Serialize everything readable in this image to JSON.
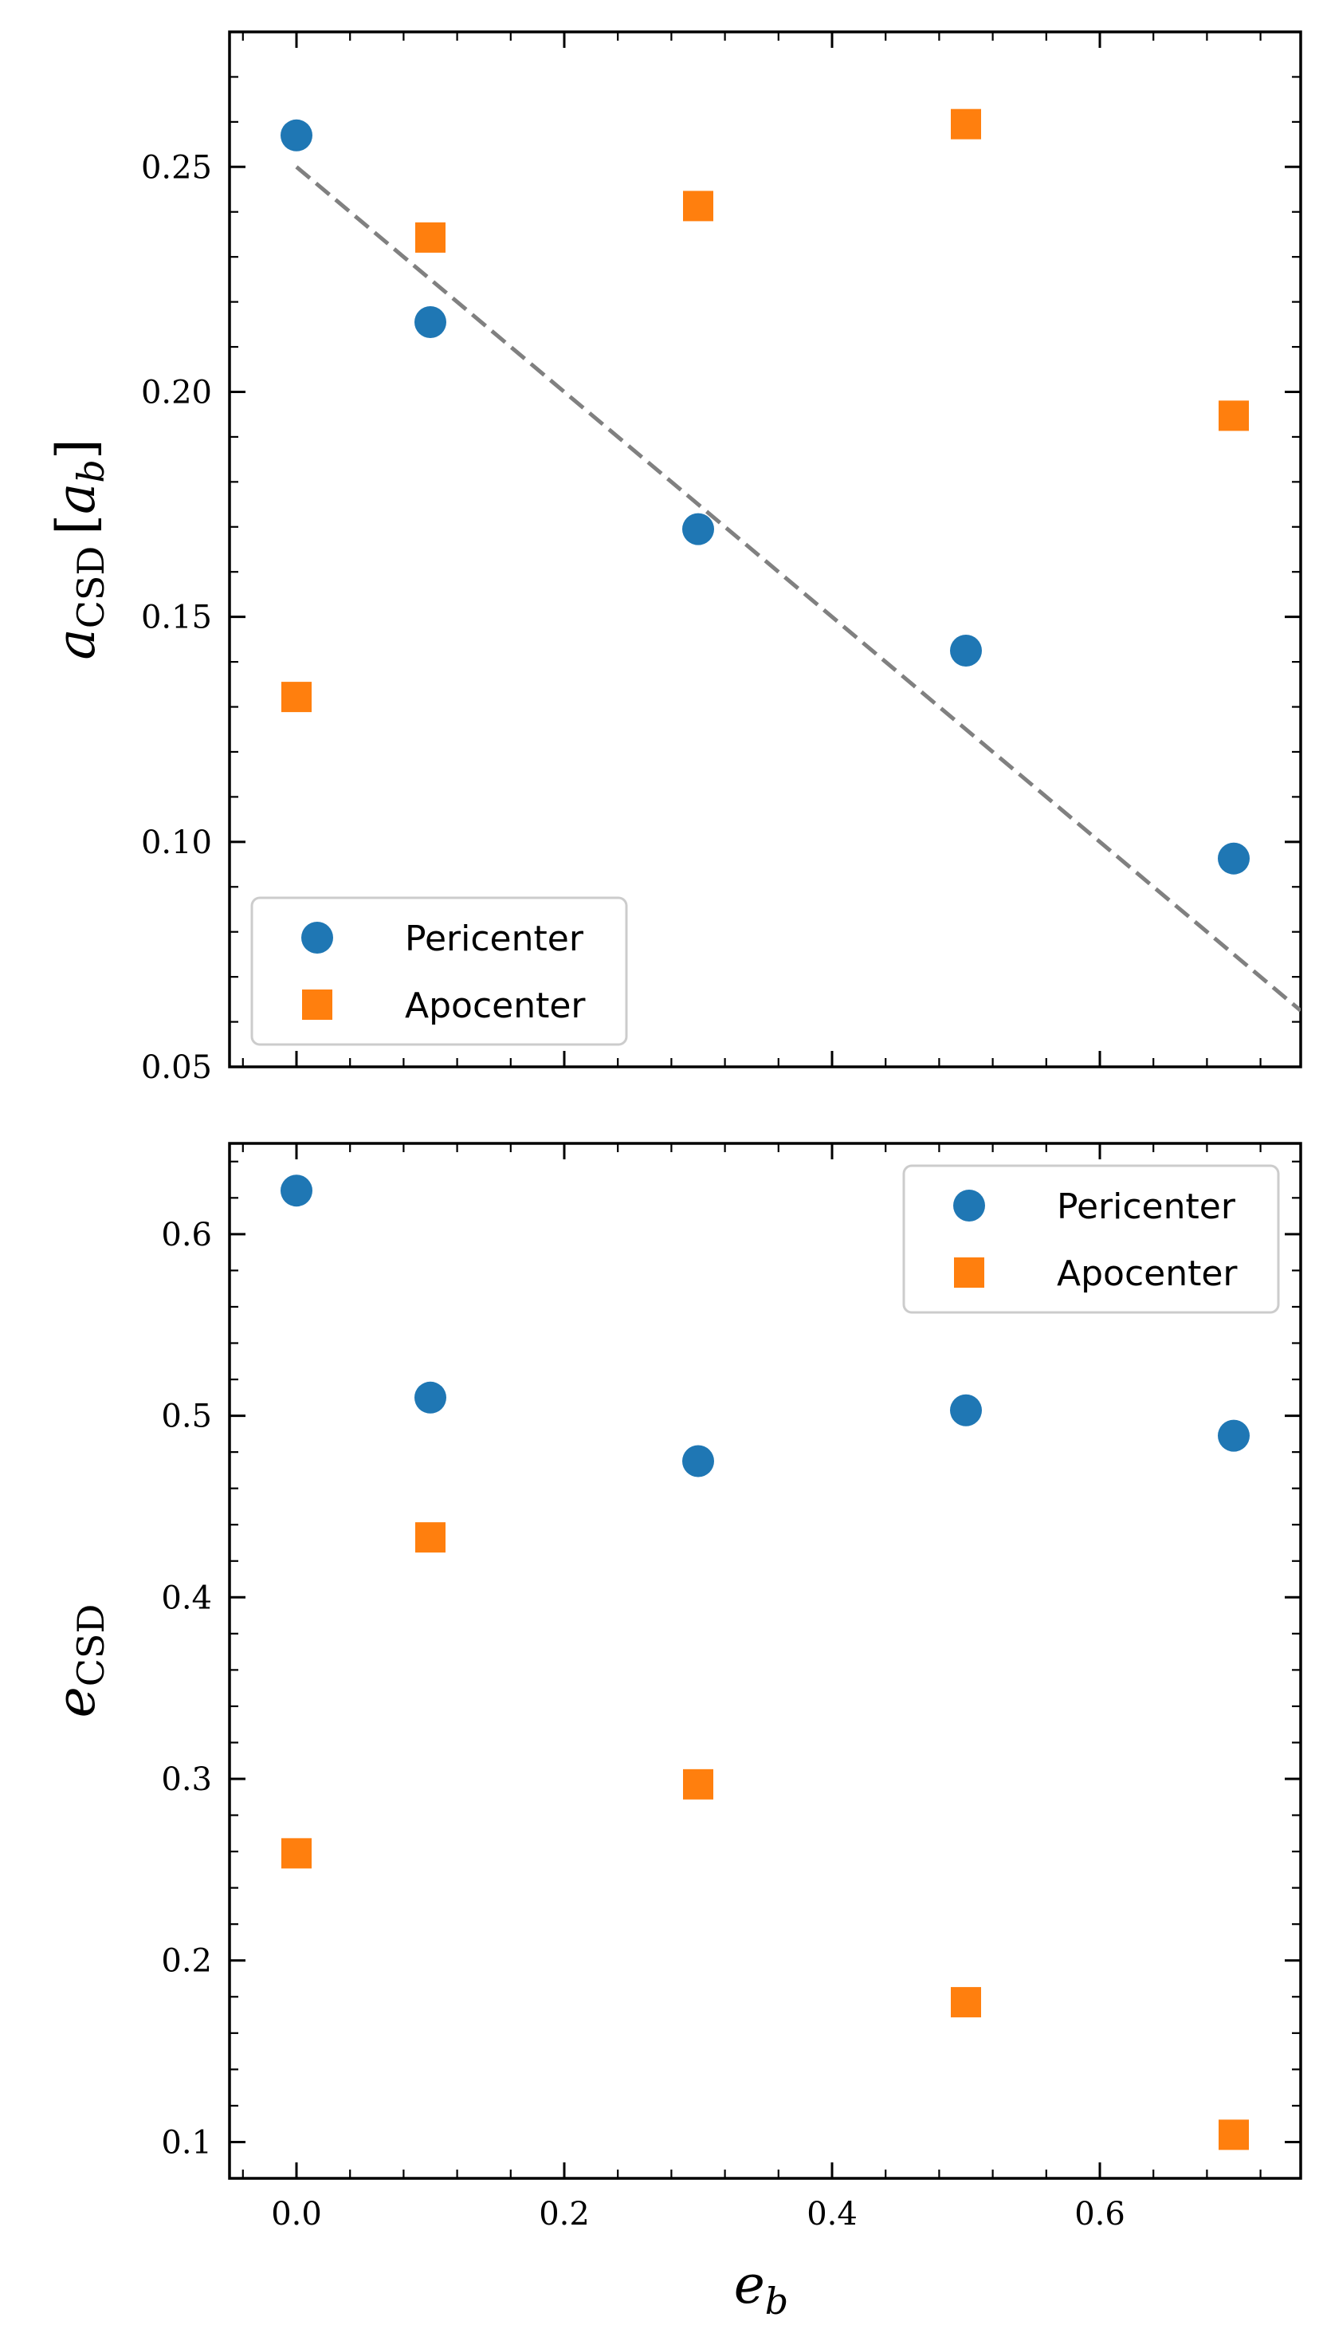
{
  "chart_data": [
    {
      "type": "scatter",
      "title": "",
      "xlabel": "e_b",
      "ylabel": "a_CSD [a_b]",
      "ylabel_parts": {
        "main": "a",
        "sub": "CSD",
        "unit_open": "[",
        "unit_main": "a",
        "unit_sub": "b",
        "unit_close": "]"
      },
      "xlim": [
        -0.05,
        0.75
      ],
      "ylim": [
        0.05,
        0.28
      ],
      "xticks": [
        0.0,
        0.2,
        0.4,
        0.6
      ],
      "yticks": [
        0.05,
        0.1,
        0.15,
        0.2,
        0.25
      ],
      "ytick_labels": [
        "0.05",
        "0.10",
        "0.15",
        "0.20",
        "0.25"
      ],
      "grid": false,
      "legend_position": "lower-left",
      "series": [
        {
          "name": "Pericenter",
          "marker": "circle",
          "color": "#1f77b4",
          "x": [
            0.0,
            0.1,
            0.3,
            0.5,
            0.7
          ],
          "y": [
            0.257,
            0.2155,
            0.1695,
            0.1425,
            0.0963
          ]
        },
        {
          "name": "Apocenter",
          "marker": "square",
          "color": "#ff7f0e",
          "x": [
            0.0,
            0.1,
            0.3,
            0.5,
            0.7
          ],
          "y": [
            0.1322,
            0.2343,
            0.2413,
            0.2595,
            0.1947
          ]
        }
      ],
      "reference_line": {
        "style": "dashed",
        "color": "#808080",
        "x": [
          0.0,
          0.75
        ],
        "y": [
          0.25,
          0.0625
        ]
      }
    },
    {
      "type": "scatter",
      "title": "",
      "xlabel": "e_b",
      "ylabel": "e_CSD",
      "ylabel_parts": {
        "main": "e",
        "sub": "CSD"
      },
      "xlim": [
        -0.05,
        0.75
      ],
      "ylim": [
        0.08,
        0.65
      ],
      "xticks": [
        0.0,
        0.2,
        0.4,
        0.6
      ],
      "xtick_labels": [
        "0.0",
        "0.2",
        "0.4",
        "0.6"
      ],
      "yticks": [
        0.1,
        0.2,
        0.3,
        0.4,
        0.5,
        0.6
      ],
      "ytick_labels": [
        "0.1",
        "0.2",
        "0.3",
        "0.4",
        "0.5",
        "0.6"
      ],
      "grid": false,
      "legend_position": "upper-right",
      "series": [
        {
          "name": "Pericenter",
          "marker": "circle",
          "color": "#1f77b4",
          "x": [
            0.0,
            0.1,
            0.3,
            0.5,
            0.7
          ],
          "y": [
            0.624,
            0.51,
            0.475,
            0.503,
            0.489
          ]
        },
        {
          "name": "Apocenter",
          "marker": "square",
          "color": "#ff7f0e",
          "x": [
            0.0,
            0.1,
            0.3,
            0.5,
            0.7
          ],
          "y": [
            0.259,
            0.433,
            0.297,
            0.177,
            0.104
          ]
        }
      ]
    }
  ],
  "xaxis_title": {
    "main": "e",
    "sub": "b"
  }
}
